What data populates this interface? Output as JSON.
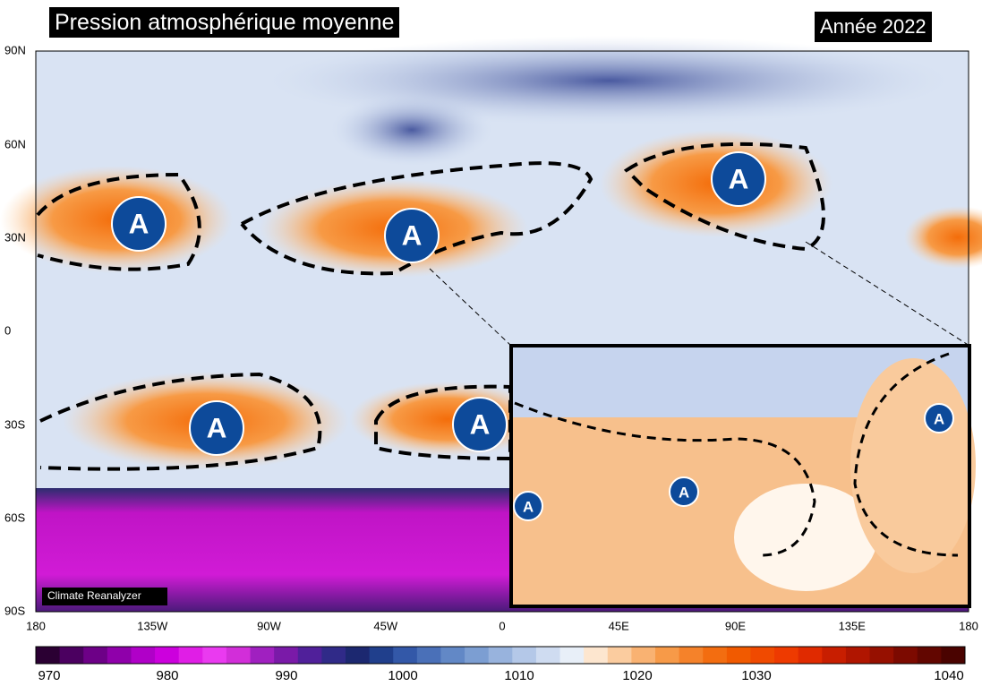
{
  "header": {
    "title": "Pression atmosphérique moyenne",
    "year": "Année 2022"
  },
  "map": {
    "lat_labels": [
      "90N",
      "60N",
      "30N",
      "0",
      "30S",
      "60S",
      "90S"
    ],
    "lon_labels": [
      "180",
      "135W",
      "90W",
      "45W",
      "0",
      "45E",
      "90E",
      "135E",
      "180"
    ],
    "highs": [
      "A",
      "A",
      "A",
      "A",
      "A"
    ],
    "credit": "Climate Reanalyzer"
  },
  "inset": {
    "highs": [
      "A",
      "A",
      "A"
    ]
  },
  "colorbar": {
    "labels": [
      "970",
      "980",
      "990",
      "1000",
      "1010",
      "1020",
      "1030",
      "1040"
    ]
  }
}
